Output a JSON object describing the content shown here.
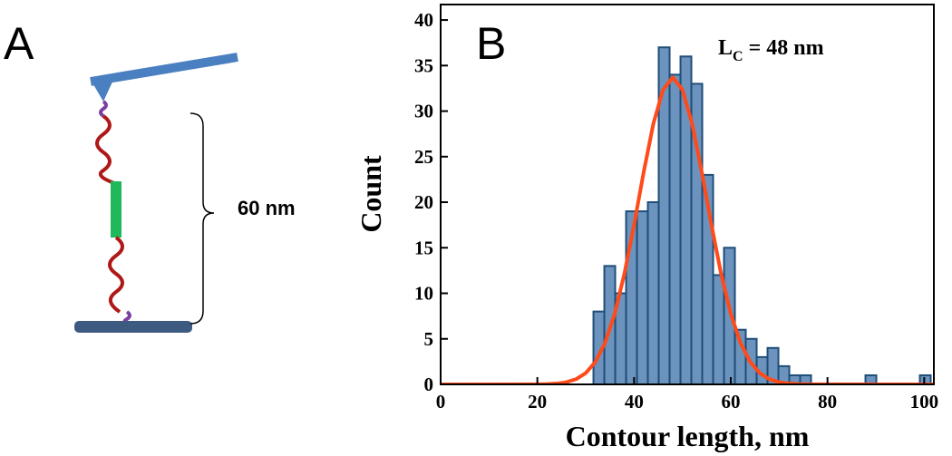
{
  "panel_a": {
    "label": "A",
    "annotation": "60 nm"
  },
  "chart_data": {
    "type": "histogram",
    "panel_label": "B",
    "x_label": "Contour length, nm",
    "y_label": "Count",
    "fit_label": {
      "symbol": "L",
      "subscript": "C",
      "text": "= 48 nm"
    },
    "bins": [
      31.6,
      33.85,
      36.1,
      38.35,
      40.6,
      42.85,
      45.1,
      47.35,
      49.6,
      51.85,
      54.1,
      56.35,
      58.6,
      60.85,
      63.1,
      65.35,
      67.6,
      69.85,
      72.1,
      74.35,
      76.6,
      78.85,
      81.1,
      83.35,
      85.6,
      87.85,
      90.1,
      92.35,
      94.6,
      96.85,
      99.1,
      101.35
    ],
    "counts": [
      8,
      13,
      10,
      19,
      19,
      20,
      37,
      34,
      36,
      33,
      23,
      12,
      15,
      6,
      5,
      3,
      4,
      2,
      1,
      1,
      0,
      0,
      0,
      0,
      0,
      1,
      0,
      0,
      0,
      0,
      1
    ],
    "color": "#6b93bd",
    "edge_color": "#1f4e79",
    "fit": {
      "color": "#ff4a1a",
      "x": [
        0,
        20,
        22,
        24,
        26,
        28,
        30,
        32,
        34,
        36,
        38,
        40,
        42,
        44,
        46,
        48,
        50,
        52,
        54,
        56,
        58,
        60,
        62,
        64,
        66,
        68,
        70,
        72,
        74,
        76,
        102
      ],
      "values": [
        0,
        0.01,
        0.034,
        0.094,
        0.24,
        0.57,
        1.24,
        2.47,
        4.56,
        7.75,
        12.14,
        17.52,
        23.33,
        28.63,
        32.35,
        33.7,
        32.35,
        28.63,
        23.33,
        17.52,
        12.14,
        7.75,
        4.56,
        2.47,
        1.24,
        0.57,
        0.24,
        0.094,
        0.034,
        0.01,
        0
      ]
    },
    "xlim": [
      0,
      102
    ],
    "ylim": [
      0,
      41.7
    ],
    "xticks": [
      0,
      20,
      40,
      60,
      80,
      100
    ],
    "yticks": [
      0,
      5,
      10,
      15,
      20,
      25,
      30,
      35,
      40
    ]
  }
}
